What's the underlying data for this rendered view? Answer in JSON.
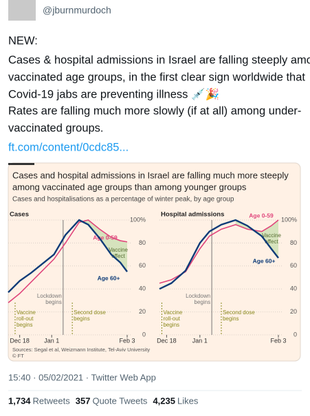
{
  "user": {
    "handle": "@jburnmurdoch"
  },
  "tweet": {
    "lines": [
      "NEW:",
      "Cases & hospital admissions in Israel are falling steeply among",
      "vaccinated age groups, in the first clear sign worldwide that",
      "Covid-19 jabs are preventing illness 💉🎉",
      "Rates are falling much more slowly (if at all) among under-",
      "vaccinated groups."
    ],
    "link": "ft.com/content/0cdc85..."
  },
  "card": {
    "title": [
      "Cases and hospital admissions in Israel are falling much more steeply",
      "among vaccinated age groups than among younger groups"
    ],
    "subtitle": "Cases and hospitalisations as a percentage of winter peak, by age group",
    "source": "Sources: Segal et al, Weizmann Institute, Tel-Aviv University",
    "copyright": "© FT"
  },
  "chart_data": [
    {
      "type": "line",
      "title": "Cases",
      "x": [
        -5,
        0,
        5,
        10,
        15,
        20,
        26,
        30,
        35,
        40,
        44,
        47
      ],
      "xlim": [
        -5,
        47
      ],
      "xticks": [
        {
          "value": 0,
          "label": "Dec 18"
        },
        {
          "value": 14,
          "label": "Jan 1"
        },
        {
          "value": 47,
          "label": "Feb 3"
        }
      ],
      "ylim": [
        0,
        100
      ],
      "yticks": [
        0,
        20,
        40,
        60,
        80,
        {
          "value": 100,
          "label": "100%"
        }
      ],
      "grid": true,
      "series": [
        {
          "name": "Age 0-59",
          "color": "#e0457b",
          "values": [
            28,
            36,
            46,
            56,
            66,
            80,
            98,
            100,
            92,
            85,
            82,
            81
          ]
        },
        {
          "name": "Age 60+",
          "color": "#0d3b78",
          "values": [
            37,
            47,
            54,
            62,
            70,
            87,
            100,
            96,
            84,
            70,
            63,
            55
          ]
        }
      ],
      "annotations": [
        {
          "text": [
            "Vaccine",
            "roll-out",
            "begins"
          ],
          "x": -2,
          "color": "#8a8a1e"
        },
        {
          "text": [
            "Lockdown",
            "begins"
          ],
          "x": 19,
          "color": "#777777"
        },
        {
          "text": [
            "Second dose",
            "begins"
          ],
          "x": 23,
          "color": "#8a8a1e"
        }
      ],
      "shade": {
        "text": [
          "Vaccine",
          "effect"
        ],
        "color": "#d6e3bd"
      }
    },
    {
      "type": "line",
      "title": "Hospital admissions",
      "x": [
        -3,
        2,
        8,
        14,
        18,
        23,
        29,
        34,
        40,
        44,
        47
      ],
      "xlim": [
        -3,
        47
      ],
      "xticks": [
        {
          "value": 0,
          "label": "Dec 18"
        },
        {
          "value": 14,
          "label": "Jan 1"
        },
        {
          "value": 47,
          "label": "Feb 3"
        }
      ],
      "ylim": [
        0,
        100
      ],
      "yticks": [
        0,
        20,
        40,
        60,
        80,
        {
          "value": 100,
          "label": "100%"
        }
      ],
      "grid": true,
      "series": [
        {
          "name": "Age 0-59",
          "color": "#e0457b",
          "values": [
            45,
            48,
            55,
            75,
            86,
            92,
            96,
            92,
            90,
            95,
            100
          ]
        },
        {
          "name": "Age 60+",
          "color": "#0d3b78",
          "values": [
            40,
            45,
            56,
            80,
            90,
            96,
            100,
            95,
            86,
            75,
            67
          ]
        }
      ],
      "annotations": [
        {
          "text": [
            "Vaccine",
            "roll-out",
            "begins"
          ],
          "x": -2,
          "color": "#8a8a1e"
        },
        {
          "text": [
            "Lockdown",
            "begins"
          ],
          "x": 19,
          "color": "#777777"
        },
        {
          "text": [
            "Second dose",
            "begins"
          ],
          "x": 23,
          "color": "#8a8a1e"
        }
      ],
      "shade": {
        "text": [
          "Vaccine",
          "effect"
        ],
        "color": "#d6e3bd"
      }
    }
  ],
  "meta": {
    "time": "15:40 · 05/02/2021 · Twitter Web App"
  },
  "stats": [
    {
      "count": "1,734",
      "label": "Retweets"
    },
    {
      "count": "357",
      "label": "Quote Tweets"
    },
    {
      "count": "4,235",
      "label": "Likes"
    }
  ]
}
